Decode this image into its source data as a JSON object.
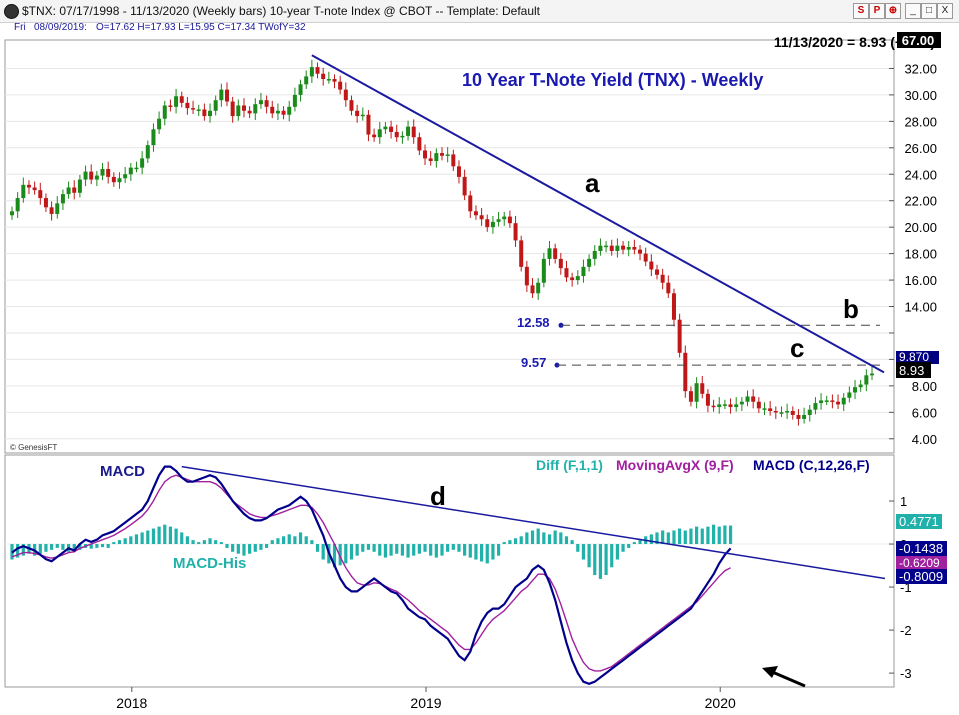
{
  "window": {
    "title": "$TNX:  07/17/1998 - 11/13/2020  (Weekly bars)   10-year T-note Index @ CBOT  --  Template: Default",
    "buttons": [
      "S",
      "P",
      "⊕",
      "_",
      "□",
      "X"
    ]
  },
  "infobar": {
    "day": "Fri",
    "date": "08/09/2019:",
    "ohlc": "O=17.62  H=17.93  L=15.95  C=17.34  TWofY=32"
  },
  "header_value": "11/13/2020 = 8.93 (+0.73)",
  "badge_value": "67.00",
  "watermark": "© GenesisFT",
  "chart_data": [
    {
      "type": "candlestick",
      "title": "10 Year T-Note Yield (TNX) - Weekly",
      "ylim": [
        3.0,
        34.0
      ],
      "yticks": [
        4.0,
        6.0,
        8.0,
        10.0,
        12.0,
        14.0,
        16.0,
        18.0,
        20.0,
        22.0,
        24.0,
        26.0,
        28.0,
        30.0,
        32.0
      ],
      "ytick_labels": [
        "4.00",
        "6.00",
        "8.00",
        "",
        "",
        "14.00",
        "16.00",
        "18.00",
        "20.00",
        "22.00",
        "24.00",
        "26.00",
        "28.00",
        "30.00",
        "32.00"
      ],
      "xticks": [
        "2018",
        "2019",
        "2020"
      ],
      "last_value": "8.93",
      "right_value_label": "9.870",
      "prices": [
        21.2,
        22.2,
        23.2,
        23.0,
        22.8,
        22.2,
        21.5,
        21.0,
        21.8,
        22.5,
        23.0,
        22.6,
        23.6,
        24.2,
        23.6,
        23.9,
        24.4,
        23.8,
        23.4,
        23.7,
        24.0,
        24.5,
        24.5,
        25.2,
        26.2,
        27.4,
        28.2,
        29.2,
        29.1,
        29.9,
        29.4,
        29.0,
        28.9,
        28.9,
        28.4,
        28.8,
        29.6,
        30.4,
        29.5,
        28.4,
        29.2,
        28.8,
        28.6,
        29.3,
        29.6,
        29.1,
        28.6,
        28.8,
        28.5,
        29.1,
        30.0,
        30.8,
        31.4,
        32.1,
        31.6,
        31.2,
        31.2,
        31.0,
        30.4,
        29.6,
        28.8,
        28.4,
        28.5,
        27.0,
        26.8,
        27.4,
        27.6,
        27.2,
        26.8,
        26.9,
        27.6,
        26.8,
        25.8,
        25.2,
        25.0,
        25.6,
        25.4,
        25.5,
        24.6,
        23.8,
        22.4,
        21.2,
        20.9,
        20.6,
        20.0,
        20.4,
        20.6,
        20.8,
        20.3,
        19.0,
        17.0,
        15.6,
        15.0,
        15.8,
        17.6,
        18.4,
        17.6,
        16.9,
        16.2,
        16.0,
        16.3,
        17.0,
        17.6,
        18.2,
        18.6,
        18.6,
        18.2,
        18.6,
        18.3,
        18.5,
        18.3,
        18.0,
        17.4,
        16.8,
        16.4,
        15.8,
        15.0,
        13.0,
        10.5,
        7.6,
        6.8,
        8.2,
        7.4,
        6.5,
        6.4,
        6.6,
        6.6,
        6.4,
        6.6,
        6.8,
        7.2,
        6.8,
        6.3,
        6.3,
        6.1,
        6.0,
        6.0,
        6.1,
        5.8,
        5.5,
        5.8,
        6.2,
        6.7,
        6.9,
        6.9,
        6.8,
        6.6,
        7.1,
        7.5,
        7.9,
        8.1,
        8.8,
        8.93
      ],
      "levels": [
        {
          "label": "12.58",
          "value": 12.58,
          "marker": "b"
        },
        {
          "label": "9.57",
          "value": 9.57,
          "marker": "c"
        }
      ],
      "trendline_label": "a",
      "trendline_start": {
        "week_index": 53,
        "value": 33.0
      },
      "trendline_end": {
        "week_index": 152,
        "value": 9.4
      }
    },
    {
      "type": "line",
      "title": "MACD",
      "legend": [
        {
          "name": "Diff (F,1,1)",
          "color": "#20b2aa"
        },
        {
          "name": "MovingAvgX (9,F)",
          "color": "#a020a0"
        },
        {
          "name": "MACD (C,12,26,F)",
          "color": "#00008b"
        }
      ],
      "histogram_label": "MACD-His",
      "trendline_label": "d",
      "ylim": [
        -3.3,
        2.0
      ],
      "yticks": [
        1,
        0,
        -1,
        -2,
        -3
      ],
      "ytick_labels": [
        "1",
        "0",
        "-1",
        "-2",
        "-3"
      ],
      "value_labels": [
        "0.4771",
        "-0.1438",
        "-0.6209",
        "-0.8009"
      ],
      "macd": [
        -0.2,
        -0.1,
        -0.05,
        -0.1,
        -0.15,
        -0.25,
        -0.35,
        -0.4,
        -0.3,
        -0.2,
        -0.1,
        -0.15,
        0.0,
        0.1,
        0.05,
        0.1,
        0.2,
        0.25,
        0.3,
        0.4,
        0.5,
        0.6,
        0.7,
        0.8,
        1.0,
        1.3,
        1.6,
        1.8,
        1.8,
        1.7,
        1.55,
        1.45,
        1.45,
        1.5,
        1.55,
        1.6,
        1.55,
        1.4,
        1.2,
        1.0,
        0.85,
        0.7,
        0.6,
        0.55,
        0.55,
        0.6,
        0.7,
        0.8,
        0.85,
        0.9,
        1.0,
        1.1,
        1.0,
        0.8,
        0.5,
        0.2,
        -0.2,
        -0.5,
        -0.8,
        -1.0,
        -1.1,
        -1.1,
        -1.0,
        -0.9,
        -0.8,
        -0.9,
        -1.0,
        -1.1,
        -1.15,
        -1.3,
        -1.5,
        -1.6,
        -1.7,
        -1.75,
        -1.9,
        -2.0,
        -2.1,
        -2.2,
        -2.4,
        -2.6,
        -2.7,
        -2.5,
        -2.1,
        -1.8,
        -1.6,
        -1.5,
        -1.5,
        -1.4,
        -1.2,
        -1.0,
        -0.9,
        -0.8,
        -0.6,
        -0.5,
        -0.6,
        -0.9,
        -1.3,
        -1.8,
        -2.3,
        -2.7,
        -3.0,
        -3.2,
        -3.25,
        -3.2,
        -3.1,
        -3.0,
        -2.9,
        -2.8,
        -2.7,
        -2.6,
        -2.5,
        -2.4,
        -2.3,
        -2.2,
        -2.1,
        -2.0,
        -1.9,
        -1.8,
        -1.7,
        -1.6,
        -1.5,
        -1.3,
        -1.1,
        -0.9,
        -0.7,
        -0.45,
        -0.25,
        -0.1
      ],
      "signal": [
        -0.3,
        -0.25,
        -0.2,
        -0.2,
        -0.22,
        -0.25,
        -0.3,
        -0.33,
        -0.3,
        -0.25,
        -0.2,
        -0.18,
        -0.1,
        -0.05,
        0.0,
        0.05,
        0.1,
        0.15,
        0.2,
        0.28,
        0.36,
        0.45,
        0.55,
        0.65,
        0.8,
        1.0,
        1.25,
        1.45,
        1.55,
        1.6,
        1.55,
        1.5,
        1.45,
        1.45,
        1.45,
        1.45,
        1.4,
        1.3,
        1.15,
        1.0,
        0.9,
        0.8,
        0.7,
        0.65,
        0.62,
        0.62,
        0.66,
        0.7,
        0.75,
        0.8,
        0.85,
        0.9,
        0.9,
        0.85,
        0.7,
        0.5,
        0.25,
        0.0,
        -0.3,
        -0.55,
        -0.75,
        -0.9,
        -0.95,
        -0.95,
        -0.9,
        -0.92,
        -0.98,
        -1.05,
        -1.1,
        -1.2,
        -1.3,
        -1.42,
        -1.55,
        -1.65,
        -1.75,
        -1.85,
        -1.95,
        -2.05,
        -2.2,
        -2.35,
        -2.45,
        -2.45,
        -2.3,
        -2.1,
        -1.9,
        -1.75,
        -1.65,
        -1.55,
        -1.4,
        -1.25,
        -1.1,
        -1.0,
        -0.85,
        -0.7,
        -0.7,
        -0.8,
        -1.05,
        -1.4,
        -1.8,
        -2.2,
        -2.5,
        -2.75,
        -2.9,
        -2.95,
        -2.95,
        -2.9,
        -2.85,
        -2.75,
        -2.65,
        -2.55,
        -2.45,
        -2.35,
        -2.25,
        -2.15,
        -2.05,
        -1.95,
        -1.85,
        -1.75,
        -1.65,
        -1.55,
        -1.45,
        -1.35,
        -1.2,
        -1.05,
        -0.9,
        -0.75,
        -0.62,
        -0.55
      ],
      "histogram": [
        -0.4,
        -0.35,
        -0.3,
        -0.25,
        -0.3,
        -0.25,
        -0.2,
        -0.15,
        -0.1,
        -0.15,
        -0.2,
        -0.2,
        -0.15,
        -0.1,
        -0.12,
        -0.1,
        -0.08,
        -0.1,
        0.05,
        0.1,
        0.15,
        0.2,
        0.25,
        0.3,
        0.35,
        0.4,
        0.45,
        0.5,
        0.45,
        0.4,
        0.3,
        0.2,
        0.1,
        0.05,
        0.1,
        0.15,
        0.1,
        0.05,
        -0.1,
        -0.2,
        -0.25,
        -0.3,
        -0.25,
        -0.2,
        -0.15,
        -0.1,
        0.1,
        0.15,
        0.2,
        0.25,
        0.2,
        0.3,
        0.2,
        0.1,
        -0.2,
        -0.4,
        -0.5,
        -0.6,
        -0.55,
        -0.5,
        -0.4,
        -0.3,
        -0.2,
        -0.15,
        -0.2,
        -0.3,
        -0.35,
        -0.3,
        -0.25,
        -0.3,
        -0.35,
        -0.3,
        -0.25,
        -0.2,
        -0.3,
        -0.35,
        -0.3,
        -0.2,
        -0.15,
        -0.2,
        -0.3,
        -0.35,
        -0.4,
        -0.45,
        -0.5,
        -0.4,
        -0.3,
        0.05,
        0.1,
        0.15,
        0.2,
        0.3,
        0.35,
        0.4,
        0.3,
        0.25,
        0.35,
        0.3,
        0.2,
        0.1,
        -0.2,
        -0.4,
        -0.6,
        -0.8,
        -0.9,
        -0.8,
        -0.6,
        -0.4,
        -0.2,
        -0.1,
        0.05,
        0.1,
        0.2,
        0.25,
        0.3,
        0.35,
        0.3,
        0.35,
        0.4,
        0.35,
        0.4,
        0.45,
        0.4,
        0.45,
        0.5,
        0.45,
        0.48,
        0.4771
      ],
      "trendline_start": {
        "week_index": 30,
        "value": 1.8
      },
      "trendline_end": {
        "week_index": 152,
        "value": -0.8
      }
    }
  ]
}
